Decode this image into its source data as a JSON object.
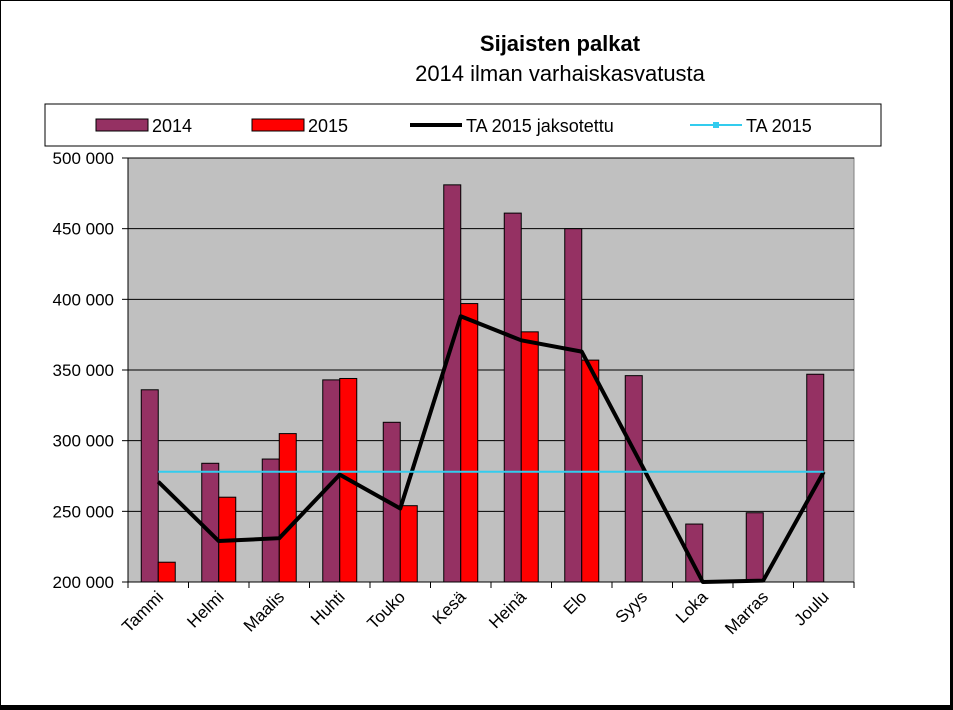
{
  "chart_data": {
    "type": "bar",
    "title": "Sijaisten palkat",
    "subtitle": "2014 ilman  varhaiskasvatusta",
    "categories": [
      "Tammi",
      "Helmi",
      "Maalis",
      "Huhti",
      "Touko",
      "Kesä",
      "Heinä",
      "Elo",
      "Syys",
      "Loka",
      "Marras",
      "Joulu"
    ],
    "series": [
      {
        "name": "2014",
        "type": "bar",
        "color": "#953163",
        "values": [
          336000,
          284000,
          287000,
          343000,
          313000,
          481000,
          461000,
          450000,
          346000,
          241000,
          249000,
          347000
        ]
      },
      {
        "name": "2015",
        "type": "bar",
        "color": "#ff0000",
        "values": [
          214000,
          260000,
          305000,
          344000,
          254000,
          397000,
          377000,
          357000,
          null,
          null,
          null,
          null
        ]
      },
      {
        "name": "TA 2015 jaksotettu",
        "type": "line",
        "color": "#000000",
        "values": [
          271000,
          229000,
          231000,
          276000,
          252000,
          388000,
          371000,
          363000,
          282000,
          198000,
          201000,
          278000
        ]
      },
      {
        "name": "TA 2015",
        "type": "line",
        "color": "#33ccee",
        "values": [
          278000,
          278000,
          278000,
          278000,
          278000,
          278000,
          278000,
          278000,
          278000,
          278000,
          278000,
          278000
        ]
      }
    ],
    "ylim": [
      200000,
      500000
    ],
    "yticks": [
      "200 000",
      "250 000",
      "300 000",
      "350 000",
      "400 000",
      "450 000",
      "500 000"
    ],
    "ytick_values": [
      200000,
      250000,
      300000,
      350000,
      400000,
      450000,
      500000
    ],
    "grid": true,
    "legend_position": "top",
    "plot_background": "#c0c0c0"
  }
}
